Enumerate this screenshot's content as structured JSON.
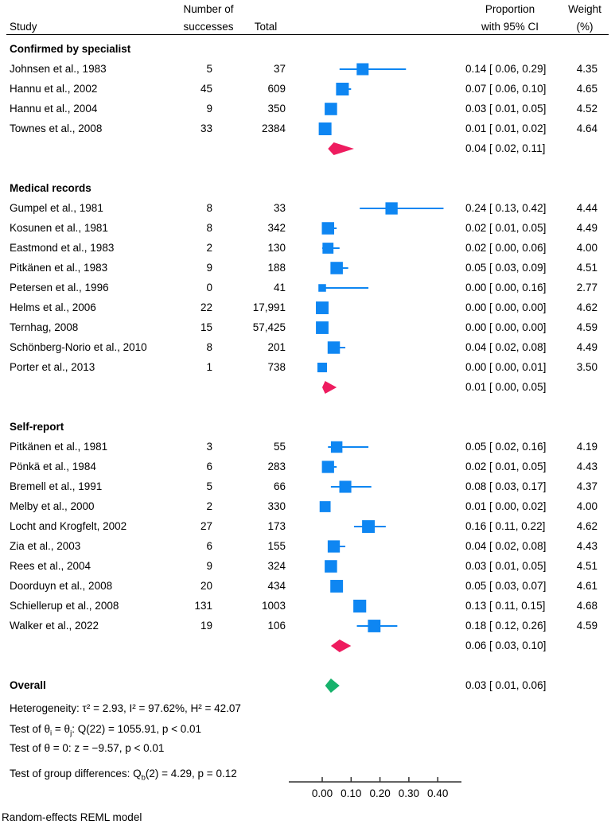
{
  "header": {
    "study": "Study",
    "successes_line1": "Number of",
    "successes_line2": "successes",
    "total": "Total",
    "proportion_line1": "Proportion",
    "proportion_line2": "with 95% CI",
    "weight_line1": "Weight",
    "weight_line2": "(%)"
  },
  "chart_data": {
    "type": "forest",
    "effect_label": "Proportion with 95% CI",
    "xticks": [
      0.0,
      0.1,
      0.2,
      0.3,
      0.4
    ],
    "xtick_labels": [
      "0.00",
      "0.10",
      "0.20",
      "0.30",
      "0.40"
    ],
    "xlim": [
      -0.115,
      0.48
    ],
    "groups": [
      {
        "label": "Confirmed by specialist",
        "studies": [
          {
            "study": "Johnsen et al., 1983",
            "successes": "5",
            "total": "37",
            "est": 0.14,
            "lo": 0.06,
            "hi": 0.29,
            "ci_text": "0.14 [ 0.06, 0.29]",
            "weight": 4.35,
            "weight_text": "4.35"
          },
          {
            "study": "Hannu et al., 2002",
            "successes": "45",
            "total": "609",
            "est": 0.07,
            "lo": 0.06,
            "hi": 0.1,
            "ci_text": "0.07 [ 0.06, 0.10]",
            "weight": 4.65,
            "weight_text": "4.65"
          },
          {
            "study": "Hannu et al., 2004",
            "successes": "9",
            "total": "350",
            "est": 0.03,
            "lo": 0.01,
            "hi": 0.05,
            "ci_text": "0.03 [ 0.01, 0.05]",
            "weight": 4.52,
            "weight_text": "4.52"
          },
          {
            "study": "Townes et al., 2008",
            "successes": "33",
            "total": "2384",
            "est": 0.01,
            "lo": 0.01,
            "hi": 0.02,
            "ci_text": "0.01 [ 0.01, 0.02]",
            "weight": 4.64,
            "weight_text": "4.64"
          }
        ],
        "summary": {
          "est": 0.04,
          "lo": 0.02,
          "hi": 0.11,
          "ci_text": "0.04 [ 0.02, 0.11]"
        }
      },
      {
        "label": "Medical records",
        "studies": [
          {
            "study": "Gumpel et al., 1981",
            "successes": "8",
            "total": "33",
            "est": 0.24,
            "lo": 0.13,
            "hi": 0.42,
            "ci_text": "0.24 [ 0.13, 0.42]",
            "weight": 4.44,
            "weight_text": "4.44"
          },
          {
            "study": "Kosunen et al., 1981",
            "successes": "8",
            "total": "342",
            "est": 0.02,
            "lo": 0.01,
            "hi": 0.05,
            "ci_text": "0.02 [ 0.01, 0.05]",
            "weight": 4.49,
            "weight_text": "4.49"
          },
          {
            "study": "Eastmond et al., 1983",
            "successes": "2",
            "total": "130",
            "est": 0.02,
            "lo": 0.0,
            "hi": 0.06,
            "ci_text": "0.02 [ 0.00, 0.06]",
            "weight": 4.0,
            "weight_text": "4.00"
          },
          {
            "study": "Pitkänen et al., 1983",
            "successes": "9",
            "total": "188",
            "est": 0.05,
            "lo": 0.03,
            "hi": 0.09,
            "ci_text": "0.05 [ 0.03, 0.09]",
            "weight": 4.51,
            "weight_text": "4.51"
          },
          {
            "study": "Petersen et al., 1996",
            "successes": "0",
            "total": "41",
            "est": 0.0,
            "lo": 0.0,
            "hi": 0.16,
            "ci_text": "0.00 [ 0.00, 0.16]",
            "weight": 2.77,
            "weight_text": "2.77"
          },
          {
            "study": "Helms et al., 2006",
            "successes": "22",
            "total": "17,991",
            "est": 0.0,
            "lo": 0.0,
            "hi": 0.0,
            "ci_text": "0.00 [ 0.00, 0.00]",
            "weight": 4.62,
            "weight_text": "4.62"
          },
          {
            "study": "Ternhag, 2008",
            "successes": "15",
            "total": "57,425",
            "est": 0.0,
            "lo": 0.0,
            "hi": 0.0,
            "ci_text": "0.00 [ 0.00, 0.00]",
            "weight": 4.59,
            "weight_text": "4.59"
          },
          {
            "study": "Schönberg-Norio et al., 2010",
            "successes": "8",
            "total": "201",
            "est": 0.04,
            "lo": 0.02,
            "hi": 0.08,
            "ci_text": "0.04 [ 0.02, 0.08]",
            "weight": 4.49,
            "weight_text": "4.49"
          },
          {
            "study": "Porter et al., 2013",
            "successes": "1",
            "total": "738",
            "est": 0.0,
            "lo": 0.0,
            "hi": 0.01,
            "ci_text": "0.00 [ 0.00, 0.01]",
            "weight": 3.5,
            "weight_text": "3.50"
          }
        ],
        "summary": {
          "est": 0.01,
          "lo": 0.0,
          "hi": 0.05,
          "ci_text": "0.01 [ 0.00, 0.05]"
        }
      },
      {
        "label": "Self-report",
        "studies": [
          {
            "study": "Pitkänen et al., 1981",
            "successes": "3",
            "total": "55",
            "est": 0.05,
            "lo": 0.02,
            "hi": 0.16,
            "ci_text": "0.05 [ 0.02, 0.16]",
            "weight": 4.19,
            "weight_text": "4.19"
          },
          {
            "study": "Pönkä et al., 1984",
            "successes": "6",
            "total": "283",
            "est": 0.02,
            "lo": 0.01,
            "hi": 0.05,
            "ci_text": "0.02 [ 0.01, 0.05]",
            "weight": 4.43,
            "weight_text": "4.43"
          },
          {
            "study": "Bremell et al., 1991",
            "successes": "5",
            "total": "66",
            "est": 0.08,
            "lo": 0.03,
            "hi": 0.17,
            "ci_text": "0.08 [ 0.03, 0.17]",
            "weight": 4.37,
            "weight_text": "4.37"
          },
          {
            "study": "Melby et al., 2000",
            "successes": "2",
            "total": "330",
            "est": 0.01,
            "lo": 0.0,
            "hi": 0.02,
            "ci_text": "0.01 [ 0.00, 0.02]",
            "weight": 4.0,
            "weight_text": "4.00"
          },
          {
            "study": "Locht and Krogfelt, 2002",
            "successes": "27",
            "total": "173",
            "est": 0.16,
            "lo": 0.11,
            "hi": 0.22,
            "ci_text": "0.16 [ 0.11, 0.22]",
            "weight": 4.62,
            "weight_text": "4.62"
          },
          {
            "study": "Zia et al., 2003",
            "successes": "6",
            "total": "155",
            "est": 0.04,
            "lo": 0.02,
            "hi": 0.08,
            "ci_text": "0.04 [ 0.02, 0.08]",
            "weight": 4.43,
            "weight_text": "4.43"
          },
          {
            "study": "Rees et al., 2004",
            "successes": "9",
            "total": "324",
            "est": 0.03,
            "lo": 0.01,
            "hi": 0.05,
            "ci_text": "0.03 [ 0.01, 0.05]",
            "weight": 4.51,
            "weight_text": "4.51"
          },
          {
            "study": "Doorduyn et al., 2008",
            "successes": "20",
            "total": "434",
            "est": 0.05,
            "lo": 0.03,
            "hi": 0.07,
            "ci_text": "0.05 [ 0.03, 0.07]",
            "weight": 4.61,
            "weight_text": "4.61"
          },
          {
            "study": "Schiellerup et al., 2008",
            "successes": "131",
            "total": "1003",
            "est": 0.13,
            "lo": 0.11,
            "hi": 0.15,
            "ci_text": "0.13 [ 0.11, 0.15]",
            "weight": 4.68,
            "weight_text": "4.68"
          },
          {
            "study": "Walker et al., 2022",
            "successes": "19",
            "total": "106",
            "est": 0.18,
            "lo": 0.12,
            "hi": 0.26,
            "ci_text": "0.18 [ 0.12, 0.26]",
            "weight": 4.59,
            "weight_text": "4.59"
          }
        ],
        "summary": {
          "est": 0.06,
          "lo": 0.03,
          "hi": 0.1,
          "ci_text": "0.06 [ 0.03, 0.10]"
        }
      }
    ],
    "overall": {
      "label": "Overall",
      "est": 0.03,
      "lo": 0.01,
      "hi": 0.06,
      "ci_text": "0.03 [ 0.01, 0.06]"
    },
    "colors": {
      "study_marker": "#0e86f2",
      "ci_line": "#0e86f2",
      "subgroup_diamond": "#ee1c5f",
      "overall_diamond": "#17b26c",
      "axis": "#303030",
      "text": "#000000"
    }
  },
  "stats_lines": [
    {
      "segments": [
        {
          "t": "Heterogeneity: τ² = 2.93, I² = 97.62%, H² = 42.07"
        }
      ]
    },
    {
      "segments": [
        {
          "t": "Test of θ"
        },
        {
          "t": "i",
          "sub": true
        },
        {
          "t": " = θ"
        },
        {
          "t": "j",
          "sub": true
        },
        {
          "t": ": Q(22) = 1055.91, p < 0.01"
        }
      ]
    },
    {
      "segments": [
        {
          "t": "Test of θ = 0: z = −9.57, p < 0.01"
        }
      ]
    },
    {
      "segments": [
        {
          "t": "Test of group differences: Q"
        },
        {
          "t": "b",
          "sub": true
        },
        {
          "t": "(2) = 4.29, p = 0.12"
        }
      ]
    }
  ],
  "footnote": "Random-effects REML model"
}
